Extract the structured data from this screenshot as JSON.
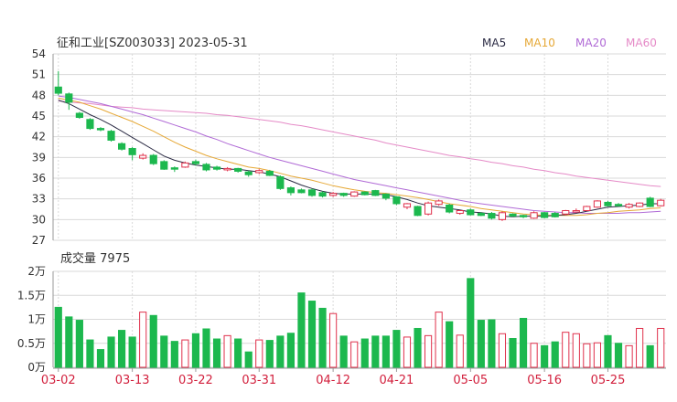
{
  "chart_data": {
    "type": "candlestick+bar",
    "title": "征和工业[SZ003033] 2023-05-31",
    "legend": [
      {
        "name": "MA5",
        "color": "#2b2b44"
      },
      {
        "name": "MA10",
        "color": "#e6a836"
      },
      {
        "name": "MA20",
        "color": "#b06ad6"
      },
      {
        "name": "MA60",
        "color": "#e58ac7"
      }
    ],
    "colors": {
      "up": "#e0304b",
      "down": "#1cb84e",
      "grid": "#d9d9d9"
    },
    "price_axis": {
      "ylim": [
        27,
        54
      ],
      "ticks": [
        "54",
        "51",
        "48",
        "45",
        "42",
        "39",
        "36",
        "33",
        "30",
        "27"
      ]
    },
    "volume_axis": {
      "title": "成交量 7975",
      "ylim": [
        0,
        2
      ],
      "unit": "万",
      "ticks": [
        "2万",
        "1.5万",
        "1万",
        "0.5万",
        "0万"
      ]
    },
    "x_labels": [
      "03-02",
      "03-13",
      "03-22",
      "03-31",
      "04-12",
      "04-21",
      "05-05",
      "05-16",
      "05-25"
    ],
    "x_label_index": [
      0,
      7,
      13,
      19,
      26,
      32,
      39,
      46,
      52
    ],
    "candles": [
      [
        48.3,
        49.2,
        51.5,
        48.0,
        "down"
      ],
      [
        47.0,
        48.2,
        48.4,
        45.9,
        "down"
      ],
      [
        44.8,
        45.4,
        45.6,
        44.6,
        "down"
      ],
      [
        43.2,
        44.5,
        44.7,
        43.0,
        "down"
      ],
      [
        43.0,
        43.2,
        43.4,
        42.8,
        "down"
      ],
      [
        41.5,
        42.8,
        43.0,
        41.3,
        "down"
      ],
      [
        40.2,
        41.0,
        41.2,
        40.0,
        "down"
      ],
      [
        39.4,
        40.3,
        40.5,
        38.6,
        "down"
      ],
      [
        38.9,
        39.3,
        39.6,
        38.7,
        "up"
      ],
      [
        38.1,
        39.3,
        39.5,
        37.9,
        "down"
      ],
      [
        37.3,
        38.4,
        38.6,
        37.2,
        "down"
      ],
      [
        37.3,
        37.5,
        37.7,
        36.9,
        "down"
      ],
      [
        38.2,
        37.6,
        38.4,
        37.5,
        "up"
      ],
      [
        38.4,
        38.1,
        38.7,
        37.8,
        "down"
      ],
      [
        37.2,
        38.0,
        38.2,
        37.0,
        "down"
      ],
      [
        37.3,
        37.6,
        37.8,
        37.1,
        "down"
      ],
      [
        37.4,
        37.2,
        37.6,
        37.0,
        "up"
      ],
      [
        37.0,
        37.4,
        37.5,
        36.8,
        "down"
      ],
      [
        36.5,
        36.9,
        37.1,
        36.2,
        "down"
      ],
      [
        37.1,
        36.8,
        37.3,
        36.6,
        "up"
      ],
      [
        36.4,
        37.0,
        37.2,
        36.3,
        "down"
      ],
      [
        34.5,
        36.2,
        36.4,
        34.3,
        "down"
      ],
      [
        33.9,
        34.6,
        34.8,
        33.5,
        "down"
      ],
      [
        33.9,
        34.3,
        34.5,
        33.8,
        "down"
      ],
      [
        33.5,
        34.3,
        34.5,
        33.3,
        "down"
      ],
      [
        33.4,
        33.9,
        34.1,
        33.2,
        "down"
      ],
      [
        33.8,
        33.5,
        34.0,
        33.3,
        "up"
      ],
      [
        33.5,
        33.8,
        33.9,
        33.3,
        "down"
      ],
      [
        34.0,
        33.4,
        34.1,
        33.3,
        "up"
      ],
      [
        33.6,
        34.0,
        34.1,
        33.5,
        "down"
      ],
      [
        33.5,
        34.2,
        34.3,
        33.4,
        "down"
      ],
      [
        33.1,
        33.7,
        33.8,
        32.8,
        "down"
      ],
      [
        32.3,
        33.3,
        33.4,
        32.1,
        "down"
      ],
      [
        31.8,
        32.3,
        32.4,
        31.5,
        "up"
      ],
      [
        30.6,
        31.9,
        32.0,
        30.5,
        "down"
      ],
      [
        32.4,
        30.8,
        32.6,
        30.6,
        "up"
      ],
      [
        32.7,
        32.2,
        32.9,
        32.0,
        "up"
      ],
      [
        31.1,
        32.1,
        32.3,
        30.9,
        "down"
      ],
      [
        31.3,
        30.9,
        31.4,
        30.7,
        "up"
      ],
      [
        30.7,
        31.4,
        31.6,
        30.6,
        "down"
      ],
      [
        30.6,
        30.9,
        31.1,
        30.5,
        "down"
      ],
      [
        30.2,
        30.9,
        31.1,
        30.0,
        "down"
      ],
      [
        31.0,
        30.0,
        31.2,
        29.8,
        "up"
      ],
      [
        30.5,
        30.8,
        30.9,
        30.4,
        "down"
      ],
      [
        30.4,
        30.6,
        30.7,
        30.2,
        "down"
      ],
      [
        31.0,
        30.2,
        31.2,
        30.1,
        "up"
      ],
      [
        30.3,
        31.0,
        31.1,
        30.2,
        "down"
      ],
      [
        30.4,
        30.9,
        31.1,
        30.3,
        "down"
      ],
      [
        31.3,
        30.8,
        31.4,
        30.6,
        "up"
      ],
      [
        31.3,
        31.1,
        31.6,
        31.0,
        "up"
      ],
      [
        31.9,
        31.3,
        32.0,
        31.2,
        "up"
      ],
      [
        32.7,
        31.8,
        32.8,
        31.7,
        "up"
      ],
      [
        32.0,
        32.5,
        32.7,
        31.9,
        "down"
      ],
      [
        32.2,
        32.0,
        32.4,
        31.9,
        "down"
      ],
      [
        31.8,
        32.2,
        32.4,
        31.6,
        "up"
      ],
      [
        32.4,
        31.9,
        32.5,
        31.8,
        "up"
      ],
      [
        31.9,
        33.1,
        33.3,
        31.8,
        "down"
      ],
      [
        32.8,
        32.0,
        33.0,
        31.9,
        "up"
      ]
    ],
    "volumes": [
      1.25,
      1.05,
      0.98,
      0.57,
      0.37,
      0.63,
      0.77,
      0.63,
      1.15,
      1.08,
      0.65,
      0.54,
      0.57,
      0.7,
      0.8,
      0.59,
      0.66,
      0.59,
      0.32,
      0.57,
      0.56,
      0.65,
      0.71,
      1.55,
      1.38,
      1.23,
      1.12,
      0.65,
      0.53,
      0.59,
      0.65,
      0.65,
      0.77,
      0.63,
      0.81,
      0.66,
      1.15,
      0.95,
      0.67,
      1.85,
      0.98,
      0.99,
      0.7,
      0.6,
      1.02,
      0.5,
      0.45,
      0.53,
      0.73,
      0.7,
      0.49,
      0.51,
      0.66,
      0.5,
      0.45,
      0.81,
      0.45,
      0.81
    ],
    "ma5": [
      47.3,
      46.8,
      46.0,
      45.2,
      44.5,
      43.7,
      42.8,
      41.9,
      41.0,
      40.1,
      39.2,
      38.6,
      38.2,
      37.9,
      37.7,
      37.5,
      37.3,
      37.3,
      37.1,
      36.9,
      36.6,
      36.2,
      35.6,
      35.0,
      34.5,
      34.1,
      33.8,
      33.7,
      33.7,
      33.7,
      33.7,
      33.6,
      33.3,
      32.9,
      32.4,
      32.0,
      31.8,
      31.6,
      31.4,
      31.1,
      31.0,
      30.8,
      30.5,
      30.4,
      30.5,
      30.5,
      30.5,
      30.6,
      30.7,
      30.9,
      31.2,
      31.5,
      31.8,
      31.9,
      32.0,
      32.1,
      32.3,
      32.3
    ],
    "ma10": [
      47.6,
      47.3,
      47.0,
      46.5,
      46.0,
      45.4,
      44.8,
      44.2,
      43.5,
      42.8,
      42.0,
      41.2,
      40.5,
      39.9,
      39.3,
      38.8,
      38.4,
      38.0,
      37.6,
      37.4,
      37.1,
      36.7,
      36.3,
      36.0,
      35.7,
      35.3,
      34.9,
      34.6,
      34.3,
      34.1,
      33.9,
      33.8,
      33.6,
      33.4,
      33.2,
      32.9,
      32.6,
      32.3,
      32.1,
      31.9,
      31.6,
      31.4,
      31.2,
      31.0,
      30.8,
      30.7,
      30.6,
      30.6,
      30.6,
      30.6,
      30.7,
      30.9,
      31.0,
      31.2,
      31.3,
      31.4,
      31.6,
      31.7
    ],
    "ma20": [
      47.9,
      47.7,
      47.4,
      47.1,
      46.8,
      46.4,
      46.0,
      45.6,
      45.2,
      44.7,
      44.2,
      43.7,
      43.2,
      42.7,
      42.1,
      41.6,
      41.0,
      40.5,
      40.0,
      39.5,
      39.0,
      38.6,
      38.2,
      37.8,
      37.4,
      37.0,
      36.6,
      36.2,
      35.8,
      35.5,
      35.2,
      34.9,
      34.6,
      34.3,
      34.0,
      33.7,
      33.4,
      33.1,
      32.8,
      32.5,
      32.3,
      32.1,
      31.9,
      31.7,
      31.5,
      31.3,
      31.2,
      31.1,
      31.0,
      31.0,
      30.9,
      30.9,
      30.9,
      30.9,
      31.0,
      31.0,
      31.1,
      31.2
    ],
    "ma60": [
      47.2,
      47.0,
      46.9,
      46.8,
      46.6,
      46.4,
      46.3,
      46.2,
      46.0,
      45.9,
      45.8,
      45.7,
      45.6,
      45.5,
      45.4,
      45.2,
      45.1,
      44.9,
      44.7,
      44.5,
      44.3,
      44.1,
      43.8,
      43.6,
      43.3,
      43.0,
      42.7,
      42.4,
      42.1,
      41.8,
      41.5,
      41.1,
      40.8,
      40.5,
      40.2,
      39.9,
      39.6,
      39.3,
      39.1,
      38.8,
      38.6,
      38.3,
      38.1,
      37.8,
      37.6,
      37.3,
      37.1,
      36.8,
      36.6,
      36.3,
      36.1,
      35.9,
      35.7,
      35.5,
      35.3,
      35.1,
      34.9,
      34.8
    ]
  }
}
